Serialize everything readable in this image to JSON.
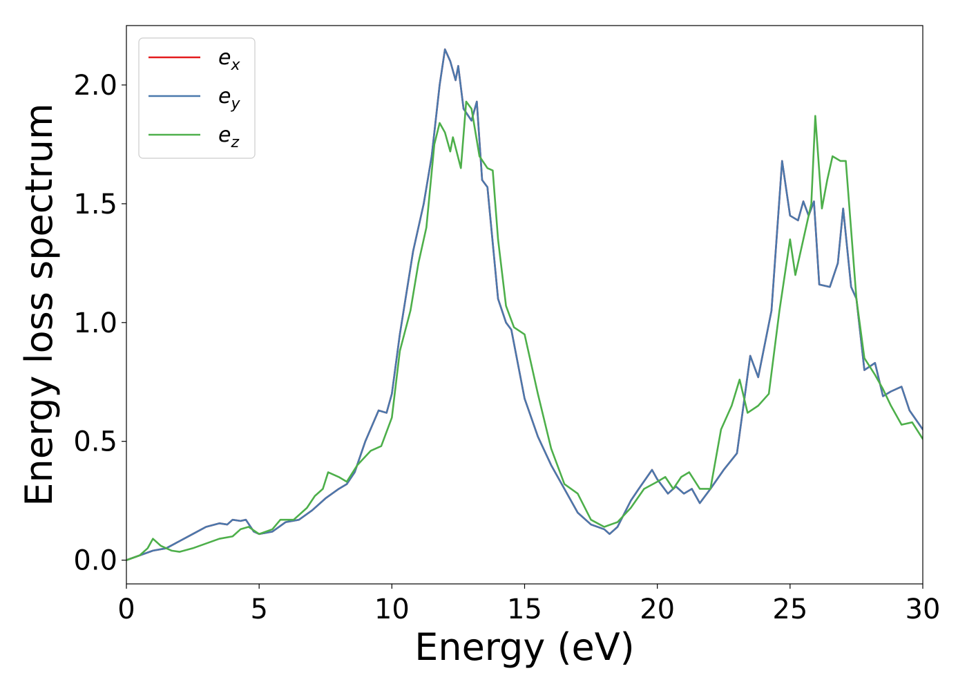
{
  "chart_data": {
    "type": "line",
    "title": "",
    "xlabel": "Energy (eV)",
    "ylabel": "Energy loss spectrum",
    "xlim": [
      0,
      30
    ],
    "ylim": [
      -0.1,
      2.25
    ],
    "xticks": [
      0,
      5,
      10,
      15,
      20,
      25,
      30
    ],
    "xtick_labels": [
      "0",
      "5",
      "10",
      "15",
      "20",
      "25",
      "30"
    ],
    "yticks": [
      0.0,
      0.5,
      1.0,
      1.5,
      2.0
    ],
    "ytick_labels": [
      "0.0",
      "0.5",
      "1.0",
      "1.5",
      "2.0"
    ],
    "grid": false,
    "legend_position": "top-left",
    "series": [
      {
        "name": "e_x",
        "label_main": "e",
        "label_sub": "x",
        "color": "#e41a1c",
        "points": [
          [
            0,
            0.0
          ],
          [
            0.5,
            0.02
          ],
          [
            1,
            0.04
          ],
          [
            1.5,
            0.05
          ],
          [
            2,
            0.08
          ],
          [
            2.5,
            0.11
          ],
          [
            3,
            0.14
          ],
          [
            3.5,
            0.155
          ],
          [
            3.8,
            0.15
          ],
          [
            4,
            0.17
          ],
          [
            4.3,
            0.165
          ],
          [
            4.5,
            0.17
          ],
          [
            4.8,
            0.12
          ],
          [
            5,
            0.11
          ],
          [
            5.5,
            0.12
          ],
          [
            6,
            0.16
          ],
          [
            6.5,
            0.17
          ],
          [
            7,
            0.21
          ],
          [
            7.5,
            0.26
          ],
          [
            8,
            0.3
          ],
          [
            8.3,
            0.32
          ],
          [
            8.6,
            0.37
          ],
          [
            9,
            0.5
          ],
          [
            9.5,
            0.63
          ],
          [
            9.8,
            0.62
          ],
          [
            10,
            0.7
          ],
          [
            10.3,
            0.95
          ],
          [
            10.8,
            1.3
          ],
          [
            11.2,
            1.5
          ],
          [
            11.5,
            1.7
          ],
          [
            11.8,
            2.0
          ],
          [
            12,
            2.15
          ],
          [
            12.2,
            2.1
          ],
          [
            12.4,
            2.02
          ],
          [
            12.5,
            2.08
          ],
          [
            12.7,
            1.9
          ],
          [
            13,
            1.85
          ],
          [
            13.2,
            1.93
          ],
          [
            13.4,
            1.6
          ],
          [
            13.6,
            1.57
          ],
          [
            14,
            1.1
          ],
          [
            14.3,
            1.0
          ],
          [
            14.5,
            0.97
          ],
          [
            15,
            0.68
          ],
          [
            15.5,
            0.52
          ],
          [
            16,
            0.4
          ],
          [
            16.5,
            0.3
          ],
          [
            17,
            0.2
          ],
          [
            17.5,
            0.15
          ],
          [
            18,
            0.13
          ],
          [
            18.2,
            0.11
          ],
          [
            18.5,
            0.14
          ],
          [
            19,
            0.25
          ],
          [
            19.3,
            0.3
          ],
          [
            19.8,
            0.38
          ],
          [
            20,
            0.34
          ],
          [
            20.4,
            0.28
          ],
          [
            20.7,
            0.31
          ],
          [
            21,
            0.28
          ],
          [
            21.3,
            0.3
          ],
          [
            21.6,
            0.24
          ],
          [
            22,
            0.3
          ],
          [
            22.5,
            0.38
          ],
          [
            23,
            0.45
          ],
          [
            23.5,
            0.86
          ],
          [
            23.8,
            0.77
          ],
          [
            24.3,
            1.05
          ],
          [
            24.7,
            1.68
          ],
          [
            25,
            1.45
          ],
          [
            25.3,
            1.43
          ],
          [
            25.5,
            1.51
          ],
          [
            25.7,
            1.45
          ],
          [
            25.9,
            1.51
          ],
          [
            26.1,
            1.16
          ],
          [
            26.5,
            1.15
          ],
          [
            26.8,
            1.25
          ],
          [
            27,
            1.48
          ],
          [
            27.3,
            1.15
          ],
          [
            27.5,
            1.1
          ],
          [
            27.8,
            0.8
          ],
          [
            28.2,
            0.83
          ],
          [
            28.5,
            0.69
          ],
          [
            28.8,
            0.71
          ],
          [
            29.2,
            0.73
          ],
          [
            29.5,
            0.63
          ],
          [
            30,
            0.55
          ]
        ]
      },
      {
        "name": "e_y",
        "label_main": "e",
        "label_sub": "y",
        "color": "#4a78ac",
        "points": [
          [
            0,
            0.0
          ],
          [
            0.5,
            0.02
          ],
          [
            1,
            0.04
          ],
          [
            1.5,
            0.05
          ],
          [
            2,
            0.08
          ],
          [
            2.5,
            0.11
          ],
          [
            3,
            0.14
          ],
          [
            3.5,
            0.155
          ],
          [
            3.8,
            0.15
          ],
          [
            4,
            0.17
          ],
          [
            4.3,
            0.165
          ],
          [
            4.5,
            0.17
          ],
          [
            4.8,
            0.12
          ],
          [
            5,
            0.11
          ],
          [
            5.5,
            0.12
          ],
          [
            6,
            0.16
          ],
          [
            6.5,
            0.17
          ],
          [
            7,
            0.21
          ],
          [
            7.5,
            0.26
          ],
          [
            8,
            0.3
          ],
          [
            8.3,
            0.32
          ],
          [
            8.6,
            0.37
          ],
          [
            9,
            0.5
          ],
          [
            9.5,
            0.63
          ],
          [
            9.8,
            0.62
          ],
          [
            10,
            0.7
          ],
          [
            10.3,
            0.95
          ],
          [
            10.8,
            1.3
          ],
          [
            11.2,
            1.5
          ],
          [
            11.5,
            1.7
          ],
          [
            11.8,
            2.0
          ],
          [
            12,
            2.15
          ],
          [
            12.2,
            2.1
          ],
          [
            12.4,
            2.02
          ],
          [
            12.5,
            2.08
          ],
          [
            12.7,
            1.9
          ],
          [
            13,
            1.85
          ],
          [
            13.2,
            1.93
          ],
          [
            13.4,
            1.6
          ],
          [
            13.6,
            1.57
          ],
          [
            14,
            1.1
          ],
          [
            14.3,
            1.0
          ],
          [
            14.5,
            0.97
          ],
          [
            15,
            0.68
          ],
          [
            15.5,
            0.52
          ],
          [
            16,
            0.4
          ],
          [
            16.5,
            0.3
          ],
          [
            17,
            0.2
          ],
          [
            17.5,
            0.15
          ],
          [
            18,
            0.13
          ],
          [
            18.2,
            0.11
          ],
          [
            18.5,
            0.14
          ],
          [
            19,
            0.25
          ],
          [
            19.3,
            0.3
          ],
          [
            19.8,
            0.38
          ],
          [
            20,
            0.34
          ],
          [
            20.4,
            0.28
          ],
          [
            20.7,
            0.31
          ],
          [
            21,
            0.28
          ],
          [
            21.3,
            0.3
          ],
          [
            21.6,
            0.24
          ],
          [
            22,
            0.3
          ],
          [
            22.5,
            0.38
          ],
          [
            23,
            0.45
          ],
          [
            23.5,
            0.86
          ],
          [
            23.8,
            0.77
          ],
          [
            24.3,
            1.05
          ],
          [
            24.7,
            1.68
          ],
          [
            25,
            1.45
          ],
          [
            25.3,
            1.43
          ],
          [
            25.5,
            1.51
          ],
          [
            25.7,
            1.45
          ],
          [
            25.9,
            1.51
          ],
          [
            26.1,
            1.16
          ],
          [
            26.5,
            1.15
          ],
          [
            26.8,
            1.25
          ],
          [
            27,
            1.48
          ],
          [
            27.3,
            1.15
          ],
          [
            27.5,
            1.1
          ],
          [
            27.8,
            0.8
          ],
          [
            28.2,
            0.83
          ],
          [
            28.5,
            0.69
          ],
          [
            28.8,
            0.71
          ],
          [
            29.2,
            0.73
          ],
          [
            29.5,
            0.63
          ],
          [
            30,
            0.55
          ]
        ]
      },
      {
        "name": "e_z",
        "label_main": "e",
        "label_sub": "z",
        "color": "#4daf4a",
        "points": [
          [
            0,
            0.0
          ],
          [
            0.5,
            0.02
          ],
          [
            0.8,
            0.05
          ],
          [
            1,
            0.09
          ],
          [
            1.3,
            0.06
          ],
          [
            1.7,
            0.04
          ],
          [
            2,
            0.035
          ],
          [
            2.5,
            0.05
          ],
          [
            3,
            0.07
          ],
          [
            3.5,
            0.09
          ],
          [
            4,
            0.1
          ],
          [
            4.3,
            0.13
          ],
          [
            4.6,
            0.14
          ],
          [
            5,
            0.11
          ],
          [
            5.5,
            0.13
          ],
          [
            5.8,
            0.17
          ],
          [
            6.3,
            0.17
          ],
          [
            6.8,
            0.22
          ],
          [
            7.1,
            0.27
          ],
          [
            7.4,
            0.3
          ],
          [
            7.6,
            0.37
          ],
          [
            8,
            0.35
          ],
          [
            8.3,
            0.33
          ],
          [
            8.7,
            0.4
          ],
          [
            9.2,
            0.46
          ],
          [
            9.6,
            0.48
          ],
          [
            10,
            0.6
          ],
          [
            10.3,
            0.88
          ],
          [
            10.7,
            1.05
          ],
          [
            11,
            1.25
          ],
          [
            11.3,
            1.4
          ],
          [
            11.6,
            1.75
          ],
          [
            11.8,
            1.84
          ],
          [
            12,
            1.8
          ],
          [
            12.2,
            1.72
          ],
          [
            12.3,
            1.78
          ],
          [
            12.6,
            1.65
          ],
          [
            12.8,
            1.93
          ],
          [
            13,
            1.9
          ],
          [
            13.3,
            1.7
          ],
          [
            13.6,
            1.65
          ],
          [
            13.8,
            1.64
          ],
          [
            14,
            1.35
          ],
          [
            14.3,
            1.07
          ],
          [
            14.6,
            0.98
          ],
          [
            15,
            0.95
          ],
          [
            15.5,
            0.7
          ],
          [
            16,
            0.47
          ],
          [
            16.5,
            0.32
          ],
          [
            17,
            0.28
          ],
          [
            17.5,
            0.17
          ],
          [
            18,
            0.14
          ],
          [
            18.5,
            0.16
          ],
          [
            19,
            0.22
          ],
          [
            19.5,
            0.3
          ],
          [
            20,
            0.33
          ],
          [
            20.3,
            0.35
          ],
          [
            20.6,
            0.3
          ],
          [
            20.9,
            0.35
          ],
          [
            21.2,
            0.37
          ],
          [
            21.6,
            0.3
          ],
          [
            22,
            0.3
          ],
          [
            22.4,
            0.55
          ],
          [
            22.8,
            0.65
          ],
          [
            23.1,
            0.76
          ],
          [
            23.4,
            0.62
          ],
          [
            23.8,
            0.65
          ],
          [
            24.2,
            0.7
          ],
          [
            24.6,
            1.05
          ],
          [
            25,
            1.35
          ],
          [
            25.2,
            1.2
          ],
          [
            25.5,
            1.35
          ],
          [
            25.8,
            1.5
          ],
          [
            25.95,
            1.87
          ],
          [
            26.2,
            1.48
          ],
          [
            26.4,
            1.6
          ],
          [
            26.6,
            1.7
          ],
          [
            26.9,
            1.68
          ],
          [
            27.1,
            1.68
          ],
          [
            27.5,
            1.1
          ],
          [
            27.8,
            0.85
          ],
          [
            28.2,
            0.78
          ],
          [
            28.5,
            0.72
          ],
          [
            28.8,
            0.65
          ],
          [
            29.2,
            0.57
          ],
          [
            29.6,
            0.58
          ],
          [
            30,
            0.51
          ]
        ]
      }
    ]
  }
}
